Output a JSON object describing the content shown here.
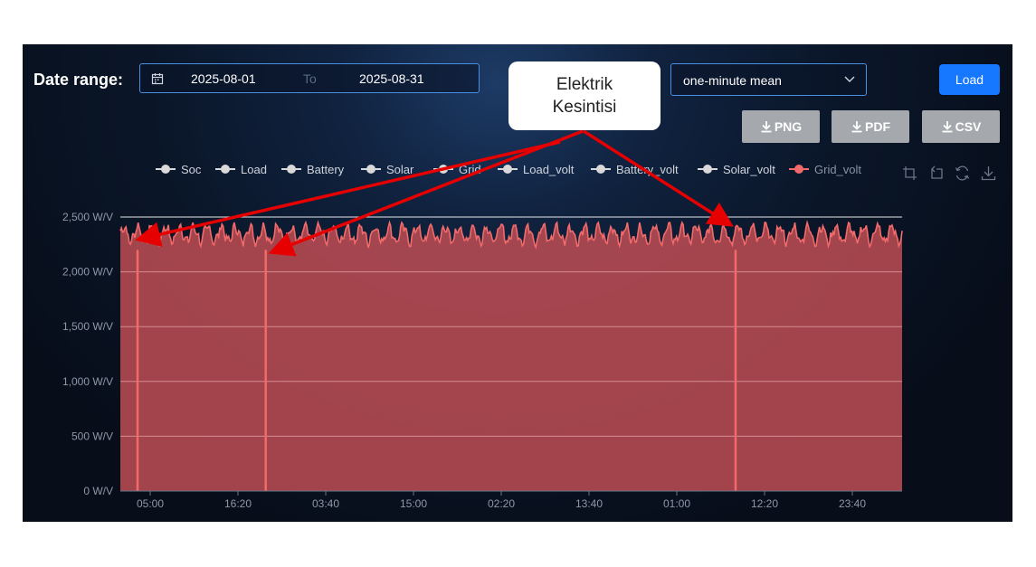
{
  "filters": {
    "date_range_label": "Date range:",
    "start_date": "2025-08-01",
    "separator": "To",
    "end_date": "2025-08-31",
    "aggregation": "one-minute mean",
    "load_label": "Load"
  },
  "export": {
    "png_label": "PNG",
    "pdf_label": "PDF",
    "csv_label": "CSV"
  },
  "legend": [
    {
      "name": "Soc",
      "active": false
    },
    {
      "name": "Load",
      "active": false
    },
    {
      "name": "Battery",
      "active": false
    },
    {
      "name": "Solar",
      "active": false
    },
    {
      "name": "Grid",
      "active": false
    },
    {
      "name": "Load_volt",
      "active": false
    },
    {
      "name": "Battery_volt",
      "active": false
    },
    {
      "name": "Solar_volt",
      "active": false
    },
    {
      "name": "Grid_volt",
      "active": true
    }
  ],
  "annotation": {
    "line1": "Elektrik",
    "line2": "Kesintisi"
  },
  "colors": {
    "series": "#f26a6a",
    "area": "#b54a52",
    "inactive_legend": "#d9d9d9",
    "accent": "#1677ff",
    "arrow": "#e60000"
  },
  "chart_data": {
    "type": "area",
    "series": [
      {
        "name": "Grid_volt",
        "values_description_range": [
          2200,
          2450
        ]
      }
    ],
    "yticks": [
      "0 W/V",
      "500 W/V",
      "1,000 W/V",
      "1,500 W/V",
      "2,000 W/V",
      "2,500 W/V"
    ],
    "ytick_values": [
      0,
      500,
      1000,
      1500,
      2000,
      2500
    ],
    "xticks": [
      "05:00",
      "16:20",
      "03:40",
      "15:00",
      "02:20",
      "13:40",
      "01:00",
      "12:20",
      "23:40"
    ],
    "ylim": [
      0,
      2500
    ],
    "grid": true,
    "legend_position": "top",
    "outages": [
      {
        "label_index": 0,
        "fraction": 0.022
      },
      {
        "label_index": 1,
        "fraction": 0.186
      },
      {
        "label_index": 2,
        "fraction": 0.787
      }
    ]
  }
}
